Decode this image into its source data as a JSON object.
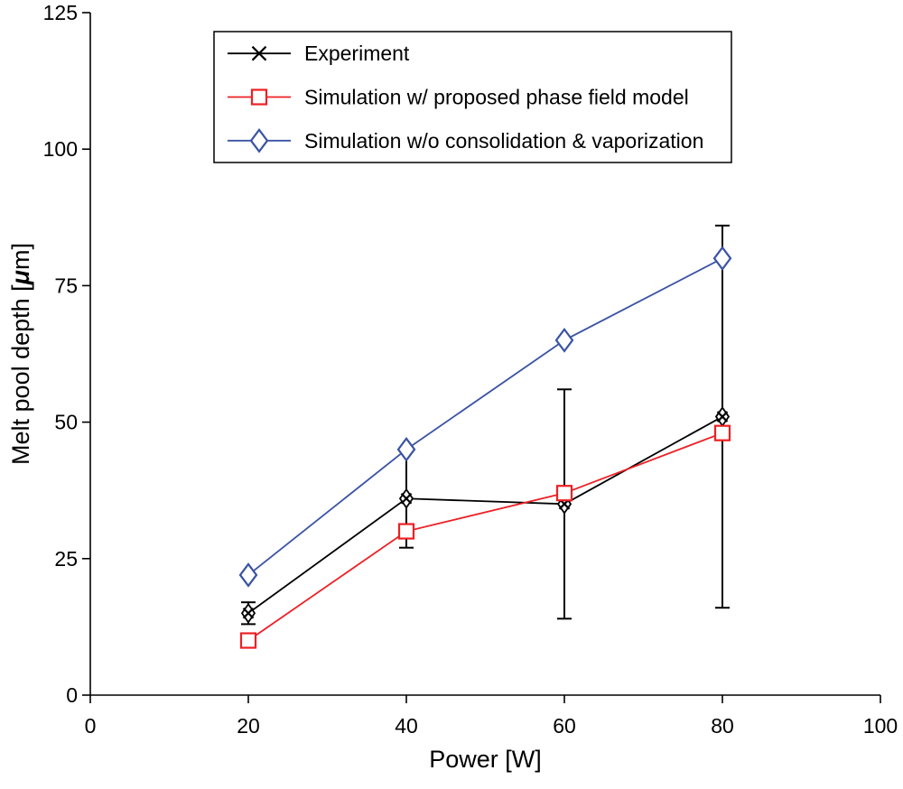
{
  "figure": {
    "background": "#ffffff"
  },
  "chart_data": {
    "type": "line",
    "title": "",
    "xlabel": "Power [W]",
    "ylabel": "Melt pool depth [μm]",
    "xlim": [
      0,
      100
    ],
    "ylim": [
      0,
      125
    ],
    "xticks": [
      0,
      20,
      40,
      60,
      80,
      100
    ],
    "yticks": [
      0,
      25,
      50,
      75,
      100,
      125
    ],
    "grid": false,
    "legend": {
      "position": "top-left-inside",
      "border": true,
      "entries": [
        "Experiment",
        "Simulation w/ proposed phase field model",
        "Simulation w/o consolidation & vaporization"
      ]
    },
    "x": [
      20,
      40,
      60,
      80
    ],
    "series": [
      {
        "name": "Experiment",
        "color": "#000000",
        "marker": "x-diamond",
        "legend_marker": "x",
        "values": [
          15,
          36,
          35,
          51
        ],
        "yerr_minus": [
          2,
          9,
          21,
          35
        ],
        "yerr_plus": [
          2,
          9,
          21,
          35
        ]
      },
      {
        "name": "Simulation w/ proposed phase field model",
        "color": "#ed2024",
        "marker": "square",
        "legend_marker": "square",
        "values": [
          10,
          30,
          37,
          48
        ]
      },
      {
        "name": "Simulation w/o consolidation & vaporization",
        "color": "#3a53a4",
        "marker": "diamond",
        "legend_marker": "diamond",
        "values": [
          22,
          45,
          65,
          80
        ]
      }
    ]
  }
}
